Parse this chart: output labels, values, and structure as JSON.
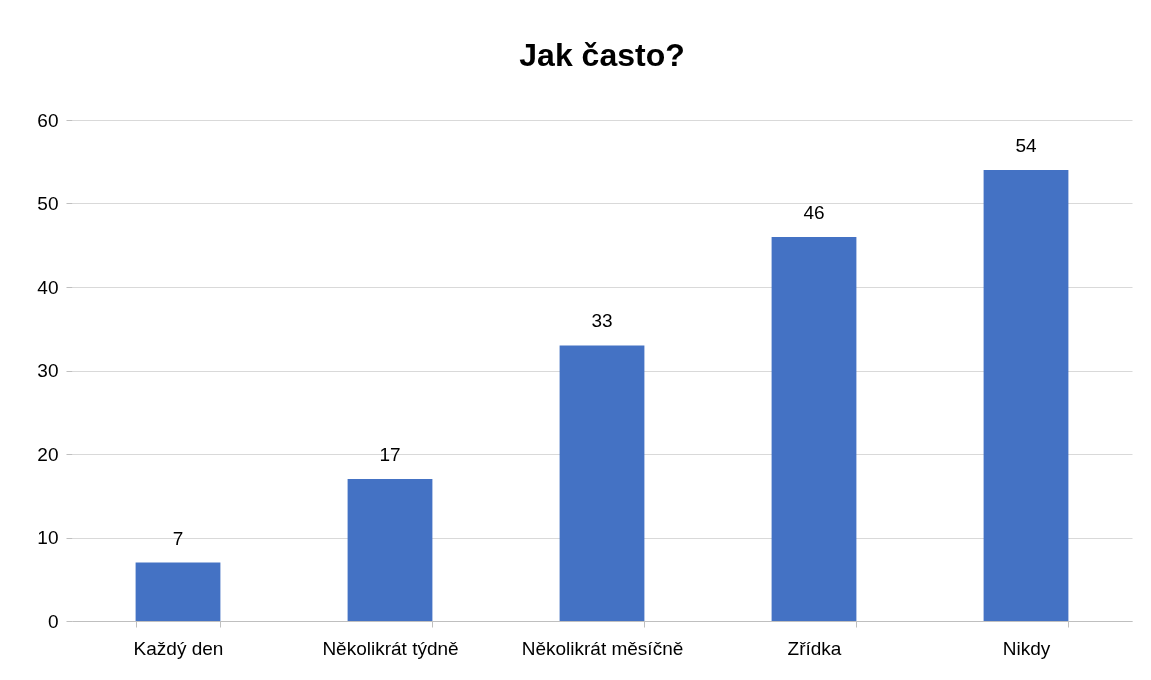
{
  "chart_data": {
    "type": "bar",
    "title": "Jak často?",
    "categories": [
      "Každý den",
      "Několikrát týdně",
      "Několikrát měsíčně",
      "Zřídka",
      "Nikdy"
    ],
    "values": [
      7,
      17,
      33,
      46,
      54
    ],
    "color": "#4472c4",
    "ylim": [
      0,
      60
    ],
    "yticks": [
      0,
      10,
      20,
      30,
      40,
      50,
      60
    ],
    "grid": "y",
    "data_labels": true
  }
}
